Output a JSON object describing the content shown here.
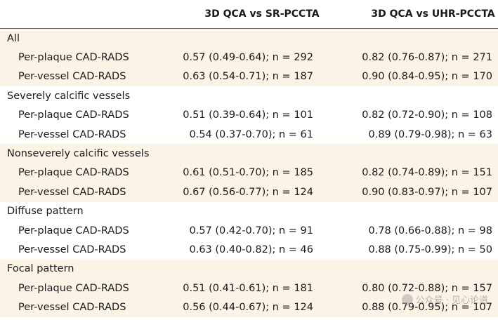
{
  "table": {
    "headers": [
      "",
      "3D QCA vs SR-PCCTA",
      "3D QCA vs UHR-PCCTA"
    ],
    "groups": [
      {
        "name": "All",
        "rows": [
          {
            "label": "Per-plaque CAD-RADS",
            "sr": "0.57 (0.49-0.64); n = 292",
            "uhr": "0.82 (0.76-0.87); n = 271"
          },
          {
            "label": "Per-vessel CAD-RADS",
            "sr": "0.63 (0.54-0.71); n = 187",
            "uhr": "0.90 (0.84-0.95); n = 170"
          }
        ]
      },
      {
        "name": "Severely calcific vessels",
        "rows": [
          {
            "label": "Per-plaque CAD-RADS",
            "sr": "0.51 (0.39-0.64); n = 101",
            "uhr": "0.82 (0.72-0.90); n = 108"
          },
          {
            "label": "Per-vessel CAD-RADS",
            "sr": "0.54 (0.37-0.70); n = 61",
            "uhr": "0.89 (0.79-0.98); n = 63"
          }
        ]
      },
      {
        "name": "Nonseverely calcific vessels",
        "rows": [
          {
            "label": "Per-plaque CAD-RADS",
            "sr": "0.61 (0.51-0.70); n = 185",
            "uhr": "0.82 (0.74-0.89); n = 151"
          },
          {
            "label": "Per-vessel CAD-RADS",
            "sr": "0.67 (0.56-0.77); n = 124",
            "uhr": "0.90 (0.83-0.97); n = 107"
          }
        ]
      },
      {
        "name": "Diffuse pattern",
        "rows": [
          {
            "label": "Per-plaque CAD-RADS",
            "sr": "0.57 (0.42-0.70); n = 91",
            "uhr": "0.78 (0.66-0.88); n = 98"
          },
          {
            "label": "Per-vessel CAD-RADS",
            "sr": "0.63 (0.40-0.82); n = 46",
            "uhr": "0.88 (0.75-0.99); n = 50"
          }
        ]
      },
      {
        "name": "Focal pattern",
        "rows": [
          {
            "label": "Per-plaque CAD-RADS",
            "sr": "0.51 (0.41-0.61); n = 181",
            "uhr": "0.80 (0.72-0.88); n = 157"
          },
          {
            "label": "Per-vessel CAD-RADS",
            "sr": "0.56 (0.44-0.67); n = 124",
            "uhr": "0.88 (0.79-0.95); n = 107"
          }
        ]
      }
    ]
  },
  "watermark": {
    "text": "公众号 · 见心论道",
    "icon": "wechat-icon"
  },
  "colors": {
    "shade": "#fbf3e6",
    "rule": "#5a5a5a"
  }
}
